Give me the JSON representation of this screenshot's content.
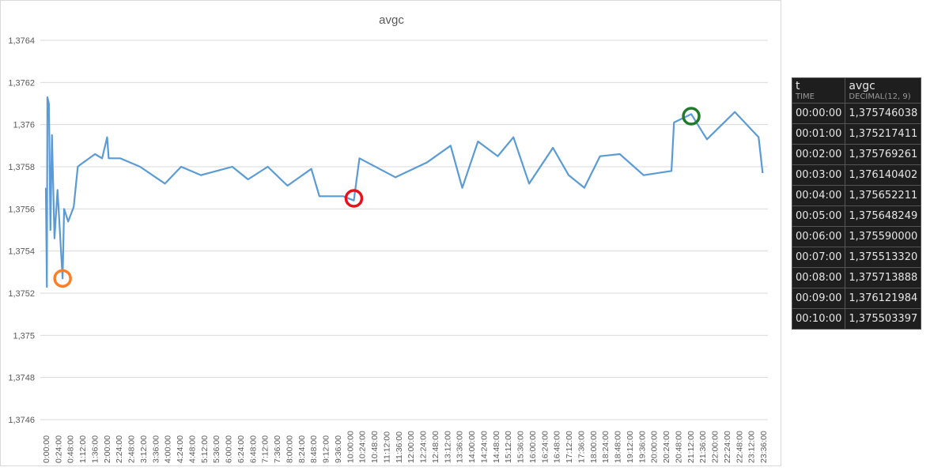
{
  "chart_data": {
    "type": "line",
    "title": "avgc",
    "ylim": [
      1.3746,
      1.3764
    ],
    "yticks": [
      "1,3746",
      "1,3748",
      "1,375",
      "1,3752",
      "1,3754",
      "1,3756",
      "1,3758",
      "1,376",
      "1,3762",
      "1,3764"
    ],
    "grid": true,
    "line_color": "#5b9bd5",
    "x_tick_step_minutes": 24,
    "series": [
      {
        "x": [
          "0:00",
          "0:02",
          "0:03",
          "0:06",
          "0:09",
          "0:12",
          "0:17",
          "0:23",
          "0:33",
          "0:36",
          "0:44",
          "0:55",
          "1:03",
          "1:08",
          "1:37",
          "1:51",
          "2:01",
          "2:04",
          "2:27",
          "3:06",
          "3:55",
          "4:27",
          "5:06",
          "6:08",
          "6:39",
          "7:18",
          "7:57",
          "8:44",
          "9:00",
          "9:47",
          "10:08",
          "10:19",
          "11:30",
          "12:32",
          "13:19",
          "13:42",
          "14:13",
          "14:52",
          "15:23",
          "15:54",
          "16:41",
          "17:12",
          "17:43",
          "18:14",
          "18:53",
          "19:40",
          "20:35",
          "20:40",
          "21:14",
          "21:45",
          "22:40",
          "23:27",
          "23:35"
        ],
        "values": [
          1.3757,
          1.37523,
          1.37613,
          1.3761,
          1.3755,
          1.37595,
          1.37546,
          1.37569,
          1.37527,
          1.3756,
          1.37554,
          1.37561,
          1.3758,
          1.37581,
          1.37586,
          1.37584,
          1.37594,
          1.37584,
          1.37584,
          1.3758,
          1.37572,
          1.3758,
          1.37576,
          1.3758,
          1.37574,
          1.3758,
          1.37571,
          1.37579,
          1.37566,
          1.37566,
          1.37564,
          1.37584,
          1.37575,
          1.37582,
          1.3759,
          1.3757,
          1.37592,
          1.37585,
          1.37594,
          1.37572,
          1.37589,
          1.37576,
          1.3757,
          1.37585,
          1.37586,
          1.37576,
          1.37578,
          1.37601,
          1.37605,
          1.37593,
          1.37606,
          1.37594,
          1.37577
        ]
      }
    ],
    "annotations": [
      {
        "shape": "circle",
        "color": "#ff7f27",
        "x": "0:33",
        "y": 1.37527
      },
      {
        "shape": "circle",
        "color": "#e8101a",
        "x": "10:08",
        "y": 1.37565
      },
      {
        "shape": "circle",
        "color": "#217a2b",
        "x": "21:14",
        "y": 1.37604
      }
    ]
  },
  "table": {
    "col1": "t",
    "col1_type": "TIME",
    "col2": "avgc",
    "col2_type": "DECIMAL(12, 9)",
    "rows": [
      [
        "00:00:00",
        "1,375746038"
      ],
      [
        "00:01:00",
        "1,375217411"
      ],
      [
        "00:02:00",
        "1,375769261"
      ],
      [
        "00:03:00",
        "1,376140402"
      ],
      [
        "00:04:00",
        "1,375652211"
      ],
      [
        "00:05:00",
        "1,375648249"
      ],
      [
        "00:06:00",
        "1,375590000"
      ],
      [
        "00:07:00",
        "1,375513320"
      ],
      [
        "00:08:00",
        "1,375713888"
      ],
      [
        "00:09:00",
        "1,376121984"
      ],
      [
        "00:10:00",
        "1,375503397"
      ]
    ]
  }
}
